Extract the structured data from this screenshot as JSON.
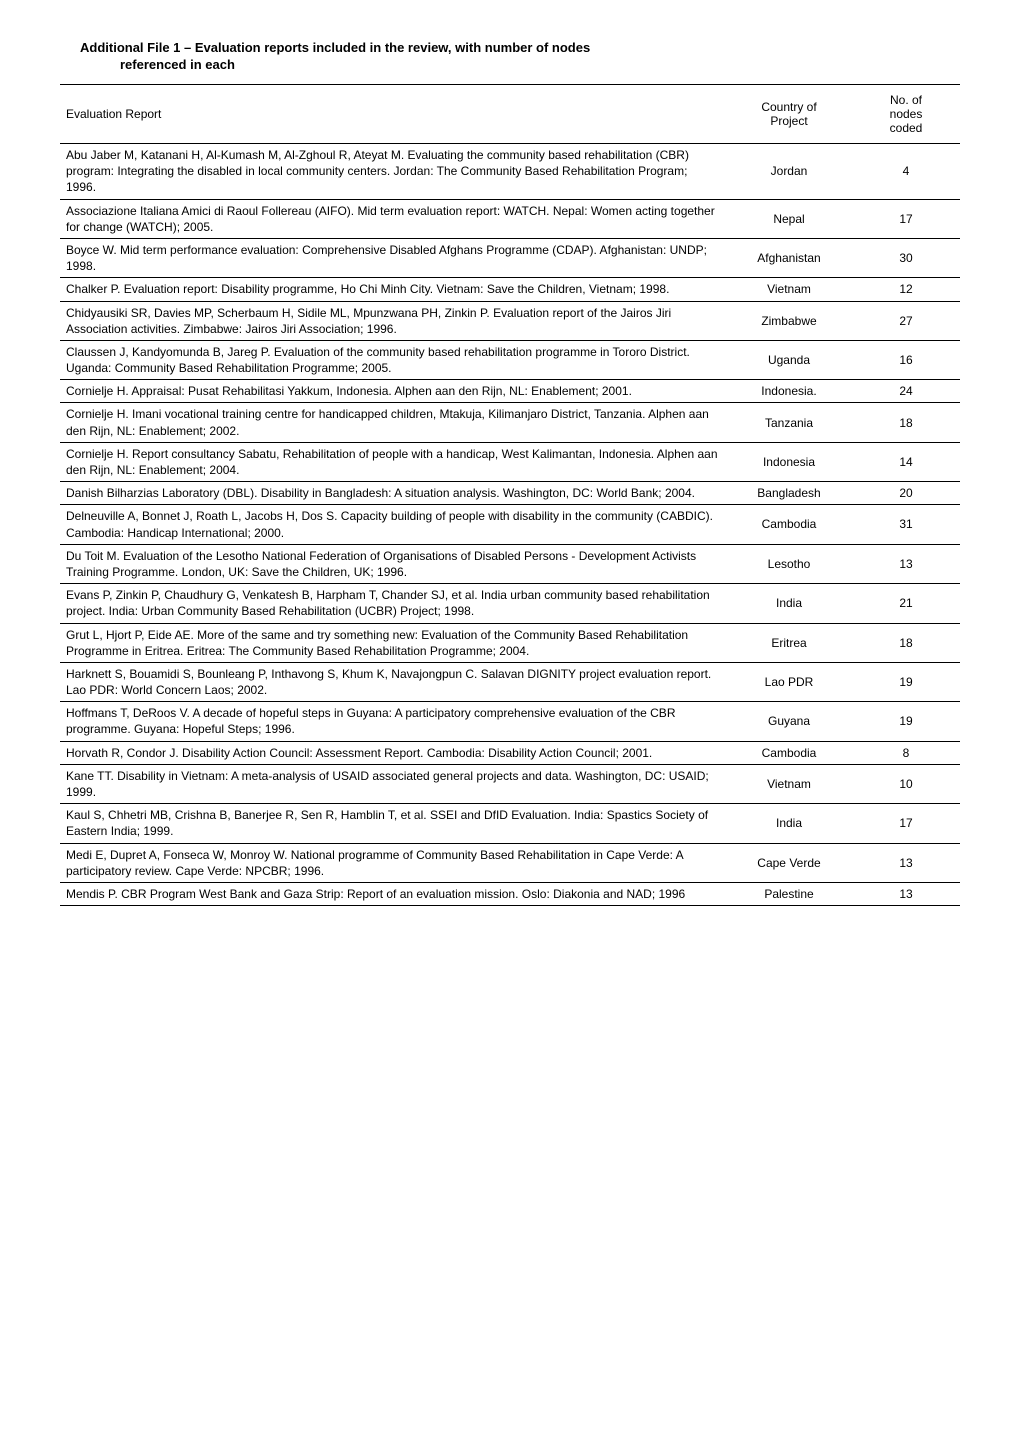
{
  "header": {
    "title_line1": "Additional File 1 – Evaluation reports included in the review, with number of nodes",
    "title_line2": "referenced in each"
  },
  "table": {
    "columns": [
      "Evaluation Report",
      "Country of Project",
      "No. of nodes coded"
    ],
    "col2_lines": [
      "Country of",
      "Project"
    ],
    "col3_lines": [
      "No. of",
      "nodes",
      "coded"
    ],
    "rows": [
      {
        "report": "Abu Jaber M, Katanani H, Al-Kumash M, Al-Zghoul R, Ateyat M. Evaluating the community based rehabilitation (CBR) program: Integrating the disabled in local community centers. Jordan: The Community Based Rehabilitation Program; 1996.",
        "country": "Jordan",
        "nodes": "4"
      },
      {
        "report": "Associazione Italiana Amici di Raoul Follereau (AIFO). Mid term evaluation report: WATCH.  Nepal: Women acting together for change (WATCH); 2005.",
        "country": "Nepal",
        "nodes": "17"
      },
      {
        "report": "Boyce W. Mid term performance evaluation: Comprehensive Disabled Afghans Programme (CDAP). Afghanistan: UNDP; 1998.",
        "country": "Afghanistan",
        "nodes": "30"
      },
      {
        "report": "Chalker P. Evaluation report: Disability programme, Ho Chi Minh City. Vietnam: Save the Children, Vietnam; 1998.",
        "country": "Vietnam",
        "nodes": "12"
      },
      {
        "report": "Chidyausiki SR, Davies MP, Scherbaum H, Sidile ML, Mpunzwana PH, Zinkin P. Evaluation report of the Jairos Jiri Association activities.  Zimbabwe: Jairos Jiri Association; 1996.",
        "country": "Zimbabwe",
        "nodes": "27"
      },
      {
        "report": "Claussen J, Kandyomunda B, Jareg P. Evaluation of the community based rehabilitation programme in Tororo District. Uganda: Community Based Rehabilitation Programme; 2005.",
        "country": "Uganda",
        "nodes": "16"
      },
      {
        "report": "Cornielje H. Appraisal: Pusat Rehabilitasi Yakkum, Indonesia. Alphen aan den Rijn, NL: Enablement; 2001.",
        "country": "Indonesia.",
        "nodes": "24"
      },
      {
        "report": "Cornielje H. Imani vocational training centre for handicapped children, Mtakuja, Kilimanjaro District, Tanzania. Alphen aan den Rijn, NL: Enablement; 2002.",
        "country": "Tanzania",
        "nodes": "18"
      },
      {
        "report": "Cornielje H. Report consultancy Sabatu, Rehabilitation of people with a handicap, West Kalimantan, Indonesia. Alphen aan den Rijn, NL: Enablement; 2004.",
        "country": "Indonesia",
        "nodes": "14"
      },
      {
        "report": "Danish Bilharzias Laboratory (DBL). Disability in Bangladesh: A situation analysis. Washington, DC: World Bank; 2004.",
        "country": "Bangladesh",
        "nodes": "20"
      },
      {
        "report": "Delneuville A, Bonnet J, Roath L, Jacobs H, Dos S. Capacity building of people with disability in the community (CABDIC). Cambodia: Handicap International; 2000.",
        "country": "Cambodia",
        "nodes": "31"
      },
      {
        "report": "Du Toit M. Evaluation of the Lesotho National Federation of Organisations of Disabled Persons - Development Activists Training Programme. London, UK: Save the Children, UK; 1996.",
        "country": "Lesotho",
        "nodes": "13"
      },
      {
        "report": "Evans P, Zinkin P, Chaudhury G, Venkatesh B, Harpham T, Chander SJ, et al. India urban community based rehabilitation project. India: Urban Community Based Rehabilitation (UCBR) Project; 1998.",
        "country": "India",
        "nodes": "21"
      },
      {
        "report": "Grut L, Hjort P, Eide AE. More of the same and try something new: Evaluation of the Community Based Rehabilitation Programme in Eritrea. Eritrea: The Community Based Rehabilitation Programme; 2004.",
        "country": "Eritrea",
        "nodes": "18"
      },
      {
        "report": "Harknett S, Bouamidi S, Bounleang P, Inthavong S, Khum K, Navajongpun C. Salavan DIGNITY project evaluation report. Lao PDR: World Concern Laos; 2002.",
        "country": "Lao PDR",
        "nodes": "19"
      },
      {
        "report": "Hoffmans T, DeRoos V. A decade of hopeful steps in Guyana: A participatory comprehensive evaluation of the CBR programme. Guyana: Hopeful Steps; 1996.",
        "country": "Guyana",
        "nodes": "19"
      },
      {
        "report": "Horvath R, Condor J. Disability Action Council: Assessment Report. Cambodia: Disability Action Council; 2001.",
        "country": "Cambodia",
        "nodes": "8"
      },
      {
        "report": "Kane TT. Disability in Vietnam: A meta-analysis of USAID associated general projects and data. Washington, DC: USAID; 1999.",
        "country": "Vietnam",
        "nodes": "10"
      },
      {
        "report": "Kaul S, Chhetri MB, Crishna B, Banerjee R, Sen R, Hamblin T, et al. SSEI and DfID Evaluation. India: Spastics Society of Eastern India; 1999.",
        "country": "India",
        "nodes": "17"
      },
      {
        "report": "Medi E, Dupret A, Fonseca W, Monroy W. National programme of Community Based Rehabilitation in Cape Verde: A participatory review. Cape Verde: NPCBR; 1996.",
        "country": "Cape Verde",
        "nodes": "13"
      },
      {
        "report": "Mendis P. CBR Program West Bank and Gaza Strip: Report of an evaluation mission. Oslo: Diakonia and NAD; 1996",
        "country": "Palestine",
        "nodes": "13"
      }
    ]
  }
}
